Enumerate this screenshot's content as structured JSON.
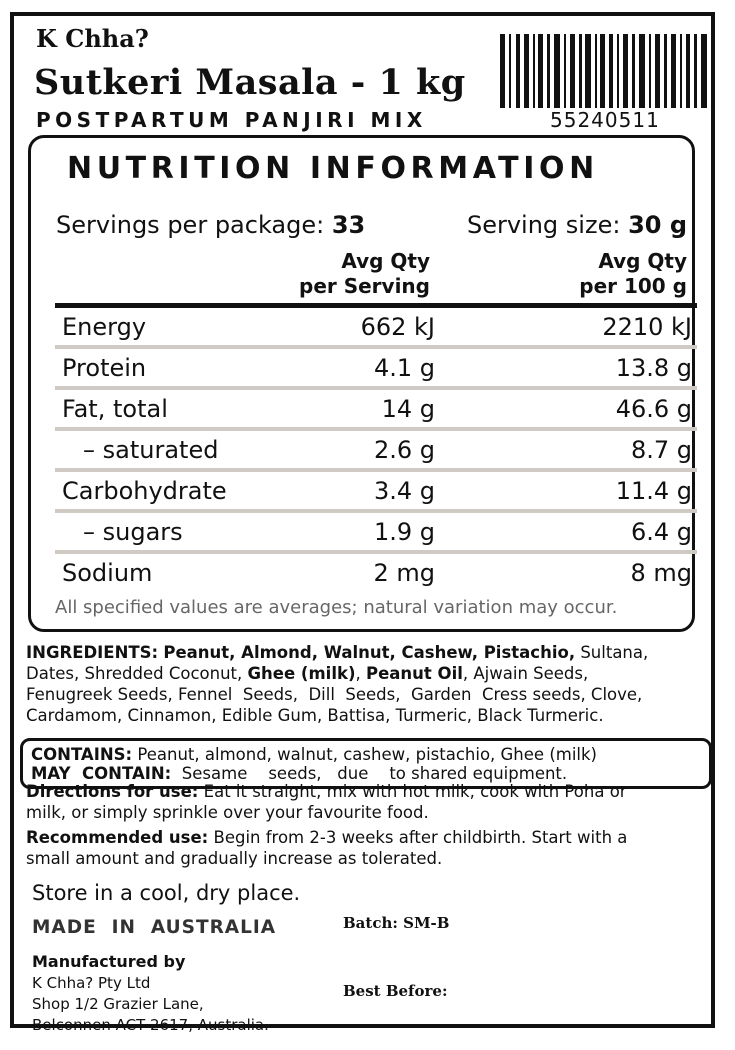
{
  "brand": "K Chha?",
  "title": "Sutkeri Masala - 1 kg",
  "subtitle": "POSTPARTUM PANJIRI MIX",
  "barcode_number": "55240511",
  "nutrition": {
    "heading": "NUTRITION INFORMATION",
    "servings_label": "Servings per package:",
    "servings_value": "33",
    "serving_size_label": "Serving size:",
    "serving_size_value": "30 g",
    "col1_line1": "Avg Qty",
    "col1_line2": "per Serving",
    "col2_line1": "Avg Qty",
    "col2_line2": "per 100 g",
    "rows": [
      {
        "name": "Energy",
        "per_serving": "662 kJ",
        "per_100g": "2210 kJ"
      },
      {
        "name": "Protein",
        "per_serving": "4.1 g",
        "per_100g": "13.8 g"
      },
      {
        "name": "Fat, total",
        "per_serving": "14 g",
        "per_100g": "46.6 g"
      },
      {
        "name": "– saturated",
        "per_serving": "2.6 g",
        "per_100g": "8.7 g"
      },
      {
        "name": "Carbohydrate",
        "per_serving": "3.4 g",
        "per_100g": "11.4 g"
      },
      {
        "name": "– sugars",
        "per_serving": "1.9 g",
        "per_100g": "6.4 g"
      },
      {
        "name": "Sodium",
        "per_serving": "2 mg",
        "per_100g": "8 mg"
      }
    ],
    "note": "All specified values are averages; natural variation may occur."
  },
  "ingredients": {
    "label": "INGREDIENTS:",
    "bold_part": "Peanut, Almond, Walnut, Cashew, Pistachio,",
    "rest_line1": " Sultana,",
    "line2_a": "Dates, Shredded Coconut, ",
    "line2_b": "Ghee (milk)",
    "line2_c": ", ",
    "line2_d": "Peanut  Oil",
    "line2_e": ", Ajwain Seeds,",
    "line3": "Fenugreek Seeds, Fennel  Seeds,  Dill  Seeds,  Garden  Cress seeds, Clove,",
    "line4": "Cardamom, Cinnamon, Edible Gum, Battisa, Turmeric, Black Turmeric."
  },
  "contains": {
    "label": "CONTAINS:",
    "text": " Peanut, almond, walnut, cashew, pistachio, Ghee (milk)",
    "may_label": "MAY  CONTAIN:",
    "may_text": "  Sesame    seeds,   due    to shared equipment."
  },
  "directions": {
    "label": "Directions for use:",
    "line1": " Eat it straight, mix with hot milk, cook with Poha or",
    "line2": "milk, or simply sprinkle over your favourite food."
  },
  "recommended": {
    "label": "Recommended use:",
    "line1": " Begin from 2-3 weeks after childbirth. Start with a",
    "line2": "small amount and gradually increase as tolerated."
  },
  "storage": "Store in a cool, dry place.",
  "made_in": "MADE  IN  AUSTRALIA",
  "batch": "Batch: SM-B",
  "best_before": "Best Before:",
  "manufacturer": {
    "heading": "Manufactured by",
    "name": "K Chha? Pty Ltd",
    "address1": "Shop 1/2 Grazier Lane,",
    "address2": "Belconnen ACT 2617, Australia."
  }
}
